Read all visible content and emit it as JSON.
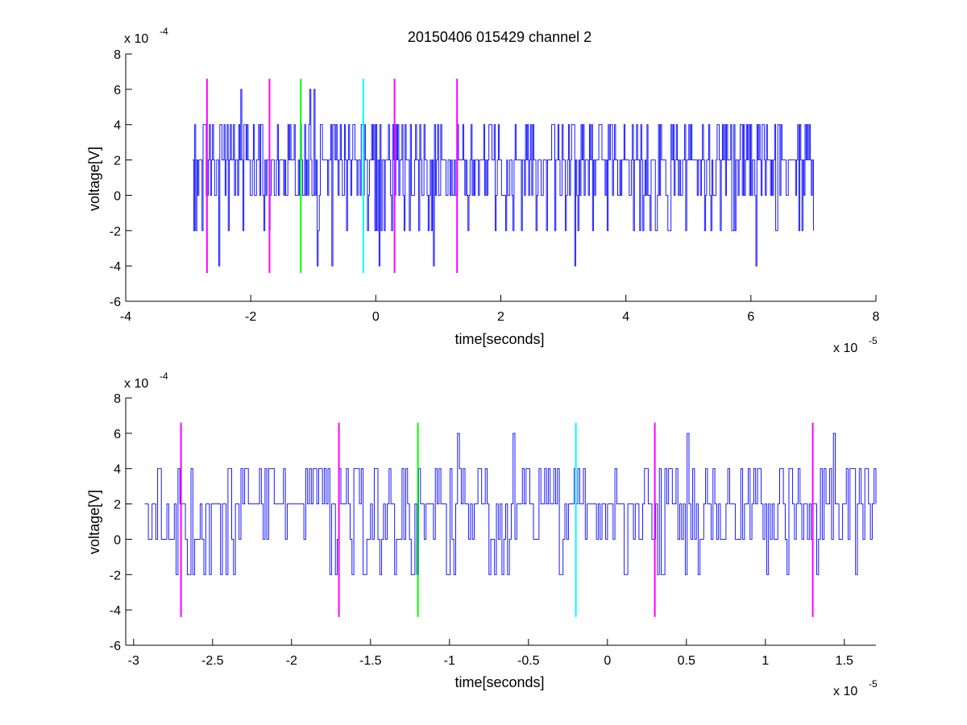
{
  "chart_data": [
    {
      "type": "line",
      "title": "20150406 015429 channel 2",
      "xlabel": "time[seconds]",
      "ylabel": "voltage[V]",
      "x_exponent_label": "x 10",
      "x_exponent": "-5",
      "y_exponent_label": "x 10",
      "y_exponent": "-4",
      "xlim": [
        -4e-05,
        8e-05
      ],
      "ylim": [
        -0.0006,
        0.0008
      ],
      "xticks": [
        -4,
        -2,
        0,
        2,
        4,
        6,
        8
      ],
      "yticks": [
        -6,
        -4,
        -2,
        0,
        2,
        4,
        6,
        8
      ],
      "xtick_labels": [
        "-4",
        "-2",
        "0",
        "2",
        "4",
        "6",
        "8"
      ],
      "ytick_labels": [
        "-6",
        "-4",
        "-2",
        "0",
        "2",
        "4",
        "6",
        "8"
      ],
      "grid": false,
      "signal": {
        "color": "#0000ff",
        "x_start": -2.93e-05,
        "x_end": 7e-05,
        "levels": [
          -0.0004,
          -0.0002,
          0,
          0.0002,
          0.0004,
          0.0006
        ],
        "baseline": 0.0002,
        "typical_range": [
          0,
          0.0004
        ],
        "min": -0.0004,
        "max": 0.0006
      },
      "markers": [
        {
          "x": -2.7e-05,
          "color": "#ff00ff",
          "y_range": [
            -0.00044,
            0.00066
          ]
        },
        {
          "x": -1.7e-05,
          "color": "#ff00ff",
          "y_range": [
            -0.00044,
            0.00066
          ]
        },
        {
          "x": -1.2e-05,
          "color": "#00ff00",
          "y_range": [
            -0.00044,
            0.00066
          ]
        },
        {
          "x": -2e-06,
          "color": "#00ffff",
          "y_range": [
            -0.00044,
            0.00066
          ]
        },
        {
          "x": 3e-06,
          "color": "#ff00ff",
          "y_range": [
            -0.00044,
            0.00066
          ]
        },
        {
          "x": 1.3e-05,
          "color": "#ff00ff",
          "y_range": [
            -0.00044,
            0.00066
          ]
        }
      ]
    },
    {
      "type": "line",
      "title": "",
      "xlabel": "time[seconds]",
      "ylabel": "voltage[V]",
      "x_exponent_label": "x 10",
      "x_exponent": "-5",
      "y_exponent_label": "x 10",
      "y_exponent": "-4",
      "xlim": [
        -3.05e-05,
        1.7e-05
      ],
      "ylim": [
        -0.0006,
        0.0008
      ],
      "xticks": [
        -3,
        -2.5,
        -2,
        -1.5,
        -1,
        -0.5,
        0,
        0.5,
        1,
        1.5
      ],
      "yticks": [
        -6,
        -4,
        -2,
        0,
        2,
        4,
        6,
        8
      ],
      "xtick_labels": [
        "-3",
        "-2.5",
        "-2",
        "-1.5",
        "-1",
        "-0.5",
        "0",
        "0.5",
        "1",
        "1.5"
      ],
      "ytick_labels": [
        "-6",
        "-4",
        "-2",
        "0",
        "2",
        "4",
        "6",
        "8"
      ],
      "grid": false,
      "signal": {
        "color": "#0000ff",
        "x_start": -2.93e-05,
        "x_end": 1.7e-05,
        "levels": [
          -0.0002,
          0,
          0.0002,
          0.0004,
          0.0006
        ],
        "baseline": 0.0002,
        "typical_range": [
          0,
          0.0004
        ],
        "min": -0.0002,
        "max": 0.0006
      },
      "markers": [
        {
          "x": -2.7e-05,
          "color": "#ff00ff",
          "y_range": [
            -0.00044,
            0.00066
          ]
        },
        {
          "x": -1.7e-05,
          "color": "#ff00ff",
          "y_range": [
            -0.00044,
            0.00066
          ]
        },
        {
          "x": -1.2e-05,
          "color": "#00ff00",
          "y_range": [
            -0.00044,
            0.00066
          ]
        },
        {
          "x": -2e-06,
          "color": "#00ffff",
          "y_range": [
            -0.00044,
            0.00066
          ]
        },
        {
          "x": 3e-06,
          "color": "#ff00ff",
          "y_range": [
            -0.00044,
            0.00066
          ]
        },
        {
          "x": 1.3e-05,
          "color": "#ff00ff",
          "y_range": [
            -0.00044,
            0.00066
          ]
        }
      ]
    }
  ]
}
